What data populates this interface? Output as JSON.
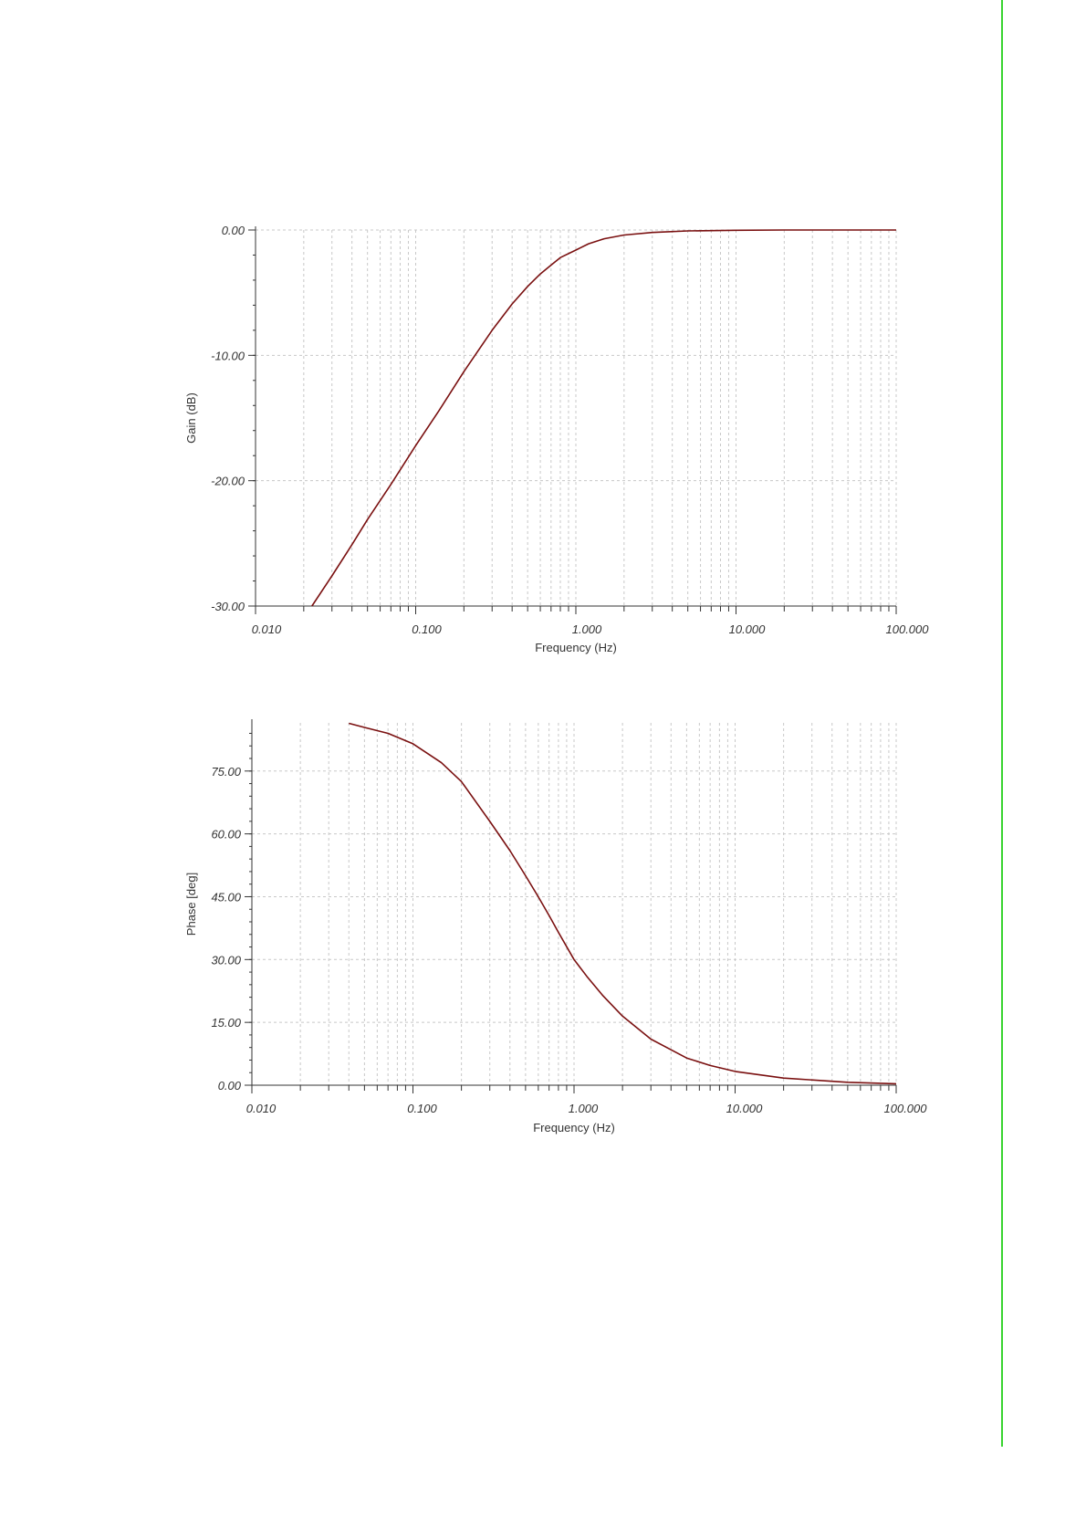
{
  "page": {
    "accent_bar_color": "#39d42f"
  },
  "chart_data": [
    {
      "type": "line",
      "title": "",
      "xlabel": "Frequency (Hz)",
      "ylabel": "Gain (dB)",
      "xscale": "log",
      "xlim": [
        0.01,
        100
      ],
      "ylim": [
        -30,
        0
      ],
      "grid": true,
      "legend": "none",
      "x_tick_labels": [
        "0.010",
        "0.100",
        "1.000",
        "10.000",
        "100.000"
      ],
      "y_tick_labels": [
        "0.00",
        "-10.00",
        "-20.00",
        "-30.00"
      ],
      "y_tick_values": [
        0,
        -10,
        -20,
        -30
      ],
      "series": [
        {
          "color": "#7a1010",
          "x": [
            0.0225,
            0.03,
            0.04,
            0.05,
            0.07,
            0.1,
            0.14,
            0.2,
            0.3,
            0.4,
            0.5,
            0.6,
            0.7,
            0.8,
            1.0,
            1.2,
            1.5,
            2.0,
            3.0,
            5.0,
            10.0,
            20.0,
            50.0,
            100.0
          ],
          "y": [
            -30.0,
            -27.6,
            -25.1,
            -23.1,
            -20.3,
            -17.2,
            -14.4,
            -11.3,
            -8.0,
            -5.9,
            -4.5,
            -3.5,
            -2.8,
            -2.2,
            -1.6,
            -1.1,
            -0.7,
            -0.4,
            -0.2,
            -0.07,
            -0.02,
            0.0,
            0.0,
            0.0
          ]
        }
      ]
    },
    {
      "type": "line",
      "title": "",
      "xlabel": "Frequency (Hz)",
      "ylabel": "Phase [deg]",
      "xscale": "log",
      "xlim": [
        0.01,
        100
      ],
      "ylim": [
        0,
        86.5
      ],
      "grid": true,
      "legend": "none",
      "x_tick_labels": [
        "0.010",
        "0.100",
        "1.000",
        "10.000",
        "100.000"
      ],
      "y_tick_labels": [
        "75.00",
        "60.00",
        "45.00",
        "30.00",
        "15.00",
        "0.00"
      ],
      "y_tick_values": [
        75,
        60,
        45,
        30,
        15,
        0
      ],
      "series": [
        {
          "color": "#7a1010",
          "x": [
            0.04,
            0.05,
            0.07,
            0.1,
            0.15,
            0.2,
            0.3,
            0.4,
            0.5,
            0.6,
            0.7,
            0.8,
            1.0,
            1.2,
            1.5,
            2.0,
            3.0,
            5.0,
            7.0,
            10.0,
            20.0,
            50.0,
            100.0
          ],
          "y": [
            86.4,
            85.4,
            84.0,
            81.5,
            77.0,
            72.5,
            63.0,
            56.0,
            50.0,
            45.0,
            40.5,
            36.5,
            30.0,
            26.0,
            21.5,
            16.5,
            11.0,
            6.5,
            4.7,
            3.3,
            1.7,
            0.7,
            0.35
          ]
        }
      ]
    }
  ]
}
